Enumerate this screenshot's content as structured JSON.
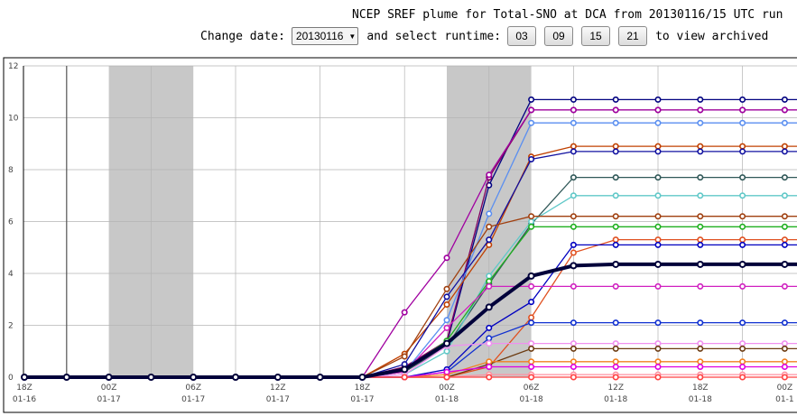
{
  "header": {
    "title": "NCEP SREF plume for Total-SNO at DCA from 20130116/15 UTC run",
    "change_date_label": "Change date:",
    "date_select_value": "20130116",
    "select_runtime_label": "and select runtime:",
    "runtime_buttons": [
      "03",
      "09",
      "15",
      "21"
    ],
    "view_archived_label": "to view archived"
  },
  "chart_data": {
    "type": "line",
    "ylim": [
      0,
      12
    ],
    "yticks": [
      0,
      2,
      4,
      6,
      8,
      10,
      12
    ],
    "x_tick_labels": [
      {
        "time": "18Z",
        "date": "01-16"
      },
      {
        "time": "00Z",
        "date": "01-17"
      },
      {
        "time": "06Z",
        "date": "01-17"
      },
      {
        "time": "12Z",
        "date": "01-17"
      },
      {
        "time": "18Z",
        "date": "01-17"
      },
      {
        "time": "00Z",
        "date": "01-18"
      },
      {
        "time": "06Z",
        "date": "01-18"
      },
      {
        "time": "12Z",
        "date": "01-18"
      },
      {
        "time": "18Z",
        "date": "01-18"
      },
      {
        "time": "00Z",
        "date": "01-1"
      }
    ],
    "x_hours": [
      -3,
      0,
      3,
      6,
      9,
      12,
      15,
      18,
      21,
      24,
      27,
      30,
      33,
      36,
      39,
      42,
      45,
      48,
      51,
      54
    ],
    "series": [
      {
        "color": "#000080",
        "values": [
          0,
          0,
          0,
          0,
          0,
          0,
          0,
          0,
          0,
          0.3,
          1.3,
          7.4,
          10.7,
          10.7,
          10.7,
          10.7,
          10.7,
          10.7,
          10.7,
          10.7
        ]
      },
      {
        "color": "#800060",
        "values": [
          0,
          0,
          0,
          0,
          0,
          0,
          0,
          0,
          0,
          0.4,
          1.4,
          7.7,
          10.3,
          10.3,
          10.3,
          10.3,
          10.3,
          10.3,
          10.3,
          10.3
        ]
      },
      {
        "color": "#5b8ff0",
        "values": [
          0,
          0,
          0,
          0,
          0,
          0,
          0,
          0,
          0,
          0.2,
          2.2,
          6.3,
          9.8,
          9.8,
          9.8,
          9.8,
          9.8,
          9.8,
          9.8,
          9.8
        ]
      },
      {
        "color": "#c04000",
        "values": [
          0,
          0,
          0,
          0,
          0,
          0,
          0,
          0,
          0,
          0.9,
          2.8,
          5.1,
          8.5,
          8.9,
          8.9,
          8.9,
          8.9,
          8.9,
          8.9,
          8.9
        ]
      },
      {
        "color": "#1010a0",
        "values": [
          0,
          0,
          0,
          0,
          0,
          0,
          0,
          0,
          0,
          0.5,
          3.1,
          5.3,
          8.4,
          8.7,
          8.7,
          8.7,
          8.7,
          8.7,
          8.7,
          8.7
        ]
      },
      {
        "color": "#305858",
        "values": [
          0,
          0,
          0,
          0,
          0,
          0,
          0,
          0,
          0,
          0.2,
          1.2,
          3.6,
          5.9,
          7.7,
          7.7,
          7.7,
          7.7,
          7.7,
          7.7,
          7.7
        ]
      },
      {
        "color": "#60c8c8",
        "values": [
          0,
          0,
          0,
          0,
          0,
          0,
          0,
          0,
          0,
          0.1,
          1.0,
          3.9,
          6.0,
          7.0,
          7.0,
          7.0,
          7.0,
          7.0,
          7.0,
          7.0
        ]
      },
      {
        "color": "#a04010",
        "values": [
          0,
          0,
          0,
          0,
          0,
          0,
          0,
          0,
          0,
          0.8,
          3.4,
          5.8,
          6.2,
          6.2,
          6.2,
          6.2,
          6.2,
          6.2,
          6.2,
          6.2
        ]
      },
      {
        "color": "#20b020",
        "values": [
          0,
          0,
          0,
          0,
          0,
          0,
          0,
          0,
          0,
          0.3,
          1.4,
          3.7,
          5.8,
          5.8,
          5.8,
          5.8,
          5.8,
          5.8,
          5.8,
          5.8
        ]
      },
      {
        "color": "#e05020",
        "values": [
          0,
          0,
          0,
          0,
          0,
          0,
          0,
          0,
          0,
          0,
          0,
          0.4,
          2.3,
          4.8,
          5.3,
          5.3,
          5.3,
          5.3,
          5.3,
          5.3
        ]
      },
      {
        "color": "#0000c0",
        "values": [
          0,
          0,
          0,
          0,
          0,
          0,
          0,
          0,
          0,
          0,
          0.3,
          1.9,
          2.9,
          5.1,
          5.1,
          5.1,
          5.1,
          5.1,
          5.1,
          5.1
        ]
      },
      {
        "color": "#d020c0",
        "values": [
          0,
          0,
          0,
          0,
          0,
          0,
          0,
          0,
          0,
          0.2,
          1.9,
          3.5,
          3.5,
          3.5,
          3.5,
          3.5,
          3.5,
          3.5,
          3.5,
          3.5
        ]
      },
      {
        "color": "#1030d0",
        "values": [
          0,
          0,
          0,
          0,
          0,
          0,
          0,
          0,
          0,
          0,
          0.2,
          1.5,
          2.1,
          2.1,
          2.1,
          2.1,
          2.1,
          2.1,
          2.1,
          2.1
        ]
      },
      {
        "color": "#f090f0",
        "values": [
          0,
          0,
          0,
          0,
          0,
          0,
          0,
          0,
          0,
          0.1,
          1.2,
          1.3,
          1.3,
          1.3,
          1.3,
          1.3,
          1.3,
          1.3,
          1.3,
          1.3
        ]
      },
      {
        "color": "#6b3a10",
        "values": [
          0,
          0,
          0,
          0,
          0,
          0,
          0,
          0,
          0,
          0,
          0,
          0.5,
          1.1,
          1.1,
          1.1,
          1.1,
          1.1,
          1.1,
          1.1,
          1.1
        ]
      },
      {
        "color": "#f08020",
        "values": [
          0,
          0,
          0,
          0,
          0,
          0,
          0,
          0,
          0,
          0,
          0.1,
          0.6,
          0.6,
          0.6,
          0.6,
          0.6,
          0.6,
          0.6,
          0.6,
          0.6
        ]
      },
      {
        "color": "#e000e0",
        "values": [
          0,
          0,
          0,
          0,
          0,
          0,
          0,
          0,
          0,
          0,
          0.2,
          0.4,
          0.4,
          0.4,
          0.4,
          0.4,
          0.4,
          0.4,
          0.4,
          0.4
        ]
      },
      {
        "color": "#a000a0",
        "values": [
          0,
          0,
          0,
          0,
          0,
          0,
          0,
          0,
          0,
          2.5,
          4.6,
          7.8,
          10.3,
          10.3,
          10.3,
          10.3,
          10.3,
          10.3,
          10.3,
          10.3
        ]
      },
      {
        "color": "#ff90a0",
        "values": [
          0,
          0,
          0,
          0,
          0,
          0,
          0,
          0,
          0,
          0,
          0,
          0.1,
          0.1,
          0.1,
          0.1,
          0.1,
          0.1,
          0.1,
          0.1,
          0.1
        ]
      },
      {
        "color": "#ff4040",
        "values": [
          0,
          0,
          0,
          0,
          0,
          0,
          0,
          0,
          0,
          0,
          0,
          0,
          0,
          0,
          0,
          0,
          0,
          0,
          0,
          0
        ]
      },
      {
        "color": "#00003a",
        "mean": true,
        "values": [
          0,
          0,
          0,
          0,
          0,
          0,
          0,
          0,
          0,
          0.3,
          1.3,
          2.7,
          3.9,
          4.3,
          4.35,
          4.35,
          4.35,
          4.35,
          4.35,
          4.35
        ]
      }
    ],
    "shaded_periods_hours": [
      [
        3,
        9
      ],
      [
        27,
        33
      ]
    ],
    "current_time_hour": 0
  }
}
